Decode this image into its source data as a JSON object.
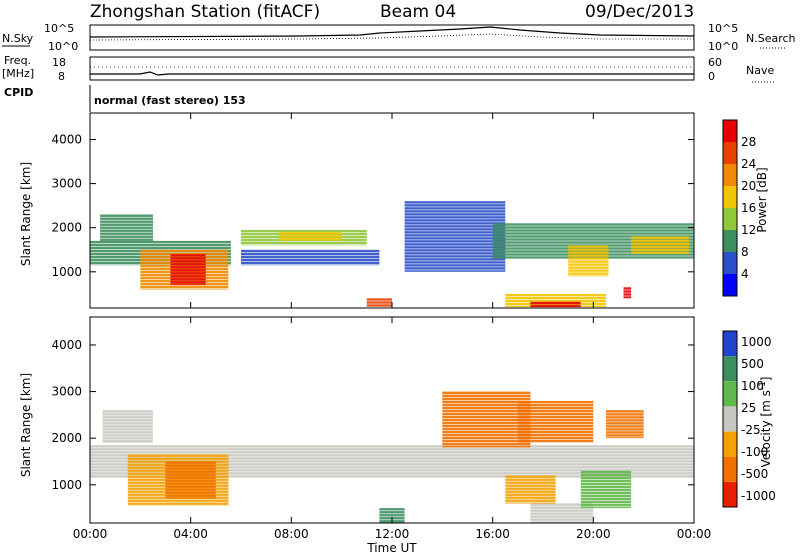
{
  "header": {
    "station_title": "Zhongshan Station (fitACF)",
    "beam": "Beam 04",
    "date": "09/Dec/2013",
    "mode_line": "normal (fast stereo) 153"
  },
  "side_labels": {
    "nsky": "N.Sky",
    "nsearch": "N.Search",
    "freq": "Freq.",
    "mhz": "[MHz]",
    "nave": "Nave",
    "cpid": "CPID"
  },
  "noise_axis": {
    "left_ticks": [
      "10^5",
      "10^0"
    ],
    "right_ticks": [
      "10^5",
      "10^0"
    ]
  },
  "freq_axis": {
    "left_ticks": [
      "18",
      "8"
    ],
    "right_ticks": [
      "60",
      "0"
    ]
  },
  "chart_data": [
    {
      "type": "heatmap",
      "panel": "power",
      "ylabel": "Slant Range [km]",
      "xlabel": "Time UT",
      "ylim": [
        180,
        4600
      ],
      "xlim": [
        0,
        24
      ],
      "x_ticks": [
        "00:00",
        "04:00",
        "08:00",
        "12:00",
        "16:00",
        "20:00",
        "00:00"
      ],
      "y_ticks": [
        1000,
        2000,
        3000,
        4000
      ],
      "colorbar_label": "Power [dB]",
      "colorbar_ticks": [
        "4",
        "8",
        "12",
        "16",
        "20",
        "24",
        "28"
      ],
      "colorbar_colors": [
        "#0000ff",
        "#2a4fc8",
        "#3d8f5e",
        "#8fc83a",
        "#f5c400",
        "#f08a00",
        "#e84000",
        "#e60000"
      ],
      "regions": [
        {
          "t0": 0.0,
          "t1": 5.6,
          "r0": 1150,
          "r1": 1700,
          "level": 2
        },
        {
          "t0": 2.0,
          "t1": 5.5,
          "r0": 600,
          "r1": 1500,
          "level": 5
        },
        {
          "t0": 3.2,
          "t1": 4.6,
          "r0": 700,
          "r1": 1400,
          "level": 7
        },
        {
          "t0": 0.4,
          "t1": 2.5,
          "r0": 1700,
          "r1": 2300,
          "level": 2
        },
        {
          "t0": 6.0,
          "t1": 11.0,
          "r0": 1600,
          "r1": 1950,
          "level": 3
        },
        {
          "t0": 7.5,
          "t1": 10.0,
          "r0": 1700,
          "r1": 1900,
          "level": 4
        },
        {
          "t0": 6.0,
          "t1": 11.5,
          "r0": 1150,
          "r1": 1500,
          "level": 1
        },
        {
          "t0": 11.0,
          "t1": 12.0,
          "r0": 200,
          "r1": 400,
          "level": 6
        },
        {
          "t0": 12.5,
          "t1": 16.5,
          "r0": 1000,
          "r1": 2600,
          "level": 1
        },
        {
          "t0": 16.5,
          "t1": 20.5,
          "r0": 200,
          "r1": 500,
          "level": 4
        },
        {
          "t0": 17.5,
          "t1": 19.5,
          "r0": 200,
          "r1": 320,
          "level": 7
        },
        {
          "t0": 16.0,
          "t1": 24.0,
          "r0": 1300,
          "r1": 2100,
          "level": 2
        },
        {
          "t0": 19.0,
          "t1": 20.6,
          "r0": 900,
          "r1": 1600,
          "level": 4
        },
        {
          "t0": 21.5,
          "t1": 23.8,
          "r0": 1400,
          "r1": 1800,
          "level": 4
        },
        {
          "t0": 21.2,
          "t1": 21.5,
          "r0": 400,
          "r1": 650,
          "level": 7
        }
      ]
    },
    {
      "type": "heatmap",
      "panel": "velocity",
      "ylabel": "Slant Range [km]",
      "xlabel": "Time UT",
      "ylim": [
        180,
        4600
      ],
      "xlim": [
        0,
        24
      ],
      "x_ticks": [
        "00:00",
        "04:00",
        "08:00",
        "12:00",
        "16:00",
        "20:00",
        "00:00"
      ],
      "y_ticks": [
        1000,
        2000,
        3000,
        4000
      ],
      "colorbar_label": "Velocity [m s^-1]",
      "colorbar_ticks": [
        "1000",
        "500",
        "100",
        "25",
        "-25",
        "-100",
        "-500",
        "-1000"
      ],
      "colorbar_colors": [
        "#2244cc",
        "#3c8f60",
        "#5fb84a",
        "#c8c8c0",
        "#f5a000",
        "#f07000",
        "#e82000"
      ],
      "regions": [
        {
          "t0": 0.0,
          "t1": 24.0,
          "r0": 1150,
          "r1": 1850,
          "level": 3
        },
        {
          "t0": 1.5,
          "t1": 5.5,
          "r0": 550,
          "r1": 1650,
          "level": 4
        },
        {
          "t0": 3.0,
          "t1": 5.0,
          "r0": 700,
          "r1": 1500,
          "level": 5
        },
        {
          "t0": 0.5,
          "t1": 2.5,
          "r0": 1900,
          "r1": 2600,
          "level": 3
        },
        {
          "t0": 11.5,
          "t1": 12.5,
          "r0": 180,
          "r1": 500,
          "level": 1
        },
        {
          "t0": 14.0,
          "t1": 17.5,
          "r0": 1800,
          "r1": 3000,
          "level": 5
        },
        {
          "t0": 17.0,
          "t1": 20.0,
          "r0": 1900,
          "r1": 2800,
          "level": 5
        },
        {
          "t0": 17.5,
          "t1": 20.0,
          "r0": 180,
          "r1": 600,
          "level": 3
        },
        {
          "t0": 19.5,
          "t1": 21.5,
          "r0": 500,
          "r1": 1300,
          "level": 2
        },
        {
          "t0": 16.5,
          "t1": 18.5,
          "r0": 600,
          "r1": 1200,
          "level": 4
        },
        {
          "t0": 20.5,
          "t1": 22.0,
          "r0": 2000,
          "r1": 2600,
          "level": 5
        }
      ]
    }
  ]
}
